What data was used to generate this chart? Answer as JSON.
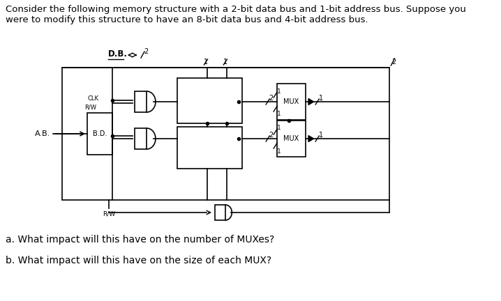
{
  "title_line1": "Consider the following memory structure with a 2-bit data bus and 1-bit address bus. Suppose you",
  "title_line2": "were to modify this structure to have an 8-bit data bus and 4-bit address bus.",
  "question_a": "a. What impact will this have on the number of MUXes?",
  "question_b": "b. What impact will this have on the size of each MUX?",
  "bg_color": "#ffffff",
  "text_color": "#000000",
  "line_color": "#000000",
  "font_size_title": 9.5,
  "font_size_questions": 10
}
